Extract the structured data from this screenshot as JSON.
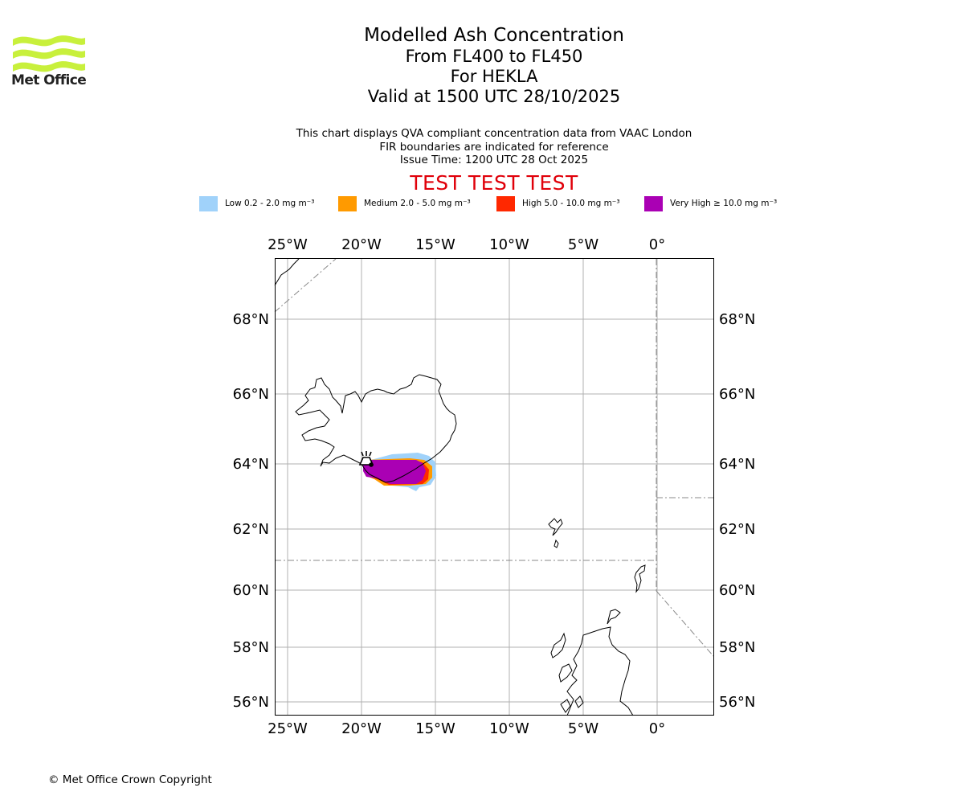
{
  "brand": {
    "logo_text": "Met Office",
    "logo_color": "#c8f03c",
    "copyright": "© Met Office Crown Copyright"
  },
  "header": {
    "title": "Modelled Ash Concentration",
    "flight_levels": "From FL400 to FL450",
    "volcano": "For HEKLA",
    "valid_time": "Valid at 1500 UTC 28/10/2025",
    "description": "This chart displays QVA compliant concentration data from VAAC London",
    "fir_note": "FIR boundaries are indicated for reference",
    "issue_time": "Issue Time: 1200 UTC 28 Oct 2025",
    "test_banner": "TEST TEST TEST",
    "test_color": "#e0000a"
  },
  "legend": [
    {
      "label": "Low 0.2 - 2.0 mg m⁻³",
      "color": "#a0d2fa"
    },
    {
      "label": "Medium 2.0 - 5.0 mg m⁻³",
      "color": "#ff9a00"
    },
    {
      "label": "High 5.0 - 10.0 mg m⁻³",
      "color": "#ff2800"
    },
    {
      "label": "Very High  ≥  10.0 mg m⁻³",
      "color": "#aa00b4"
    }
  ],
  "map": {
    "lon_range": [
      -26,
      4
    ],
    "lat_range": [
      55.5,
      69.6
    ],
    "lon_ticks": [
      {
        "value": -25,
        "label": "25°W"
      },
      {
        "value": -20,
        "label": "20°W"
      },
      {
        "value": -15,
        "label": "15°W"
      },
      {
        "value": -10,
        "label": "10°W"
      },
      {
        "value": -5,
        "label": "5°W"
      },
      {
        "value": 0,
        "label": "0°"
      }
    ],
    "lat_ticks": [
      {
        "value": 68,
        "label": "68°N"
      },
      {
        "value": 66,
        "label": "66°N"
      },
      {
        "value": 64,
        "label": "64°N"
      },
      {
        "value": 62,
        "label": "62°N"
      },
      {
        "value": 60,
        "label": "60°N"
      },
      {
        "value": 58,
        "label": "58°N"
      },
      {
        "value": 56,
        "label": "56°N"
      }
    ],
    "volcano_marker_icon": "volcano-icon",
    "grid": true
  }
}
